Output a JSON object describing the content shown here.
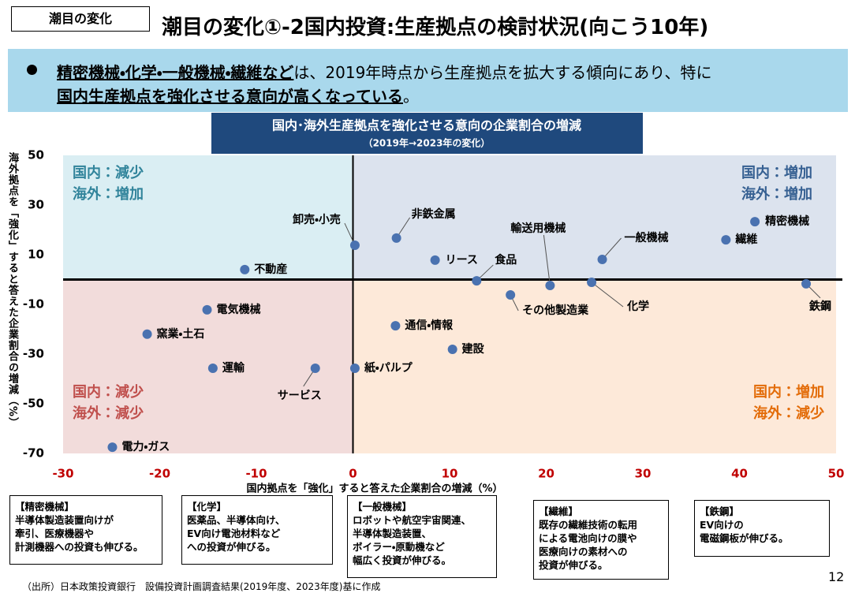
{
  "header": {
    "tag": "潮目の変化",
    "title": "潮目の変化①-2国内投資:生産拠点の検討状況(向こう10年)"
  },
  "summary": {
    "line1": [
      "精密機械・化学・一般機械・繊維など",
      "は、2019年時点から生産拠点を拡大する傾向にあり、特に"
    ],
    "line2": [
      "国内生産拠点を強化させる意向が高くなっている",
      "。"
    ]
  },
  "chart_data": {
    "type": "scatter",
    "title": "国内･海外生産拠点を強化させる意向の企業割合の増減",
    "subtitle": "（2019年→2023年の変化）",
    "x_label": "国内拠点を「強化」すると答えた企業割合の増減（%）",
    "y_label": "海外拠点を「強化」すると答えた企業割合の増減（%）",
    "xlim": [
      -30,
      50
    ],
    "ylim": [
      -70,
      50
    ],
    "xticks": [
      -30,
      -20,
      -10,
      0,
      10,
      20,
      30,
      40,
      50
    ],
    "yticks": [
      -70,
      -50,
      -30,
      -10,
      10,
      30,
      50
    ],
    "quadrants": [
      [
        "国内：減少",
        "海外：増加"
      ],
      [
        "国内：増加",
        "海外：増加"
      ],
      [
        "国内：減少",
        "海外：減少"
      ],
      [
        "国内：増加",
        "海外：減少"
      ]
    ],
    "color": "#4a72b0",
    "labels": [
      "精密機械",
      "繊維",
      "一般機械",
      "鉄鋼",
      "化学",
      "輸送用機械",
      "その他製造業",
      "食品",
      "リース",
      "非鉄金属",
      "卸売・小売",
      "不動産",
      "電気機械",
      "通信・情報",
      "窯業・土石",
      "建設",
      "運輸",
      "サービス",
      "紙・パルプ",
      "電力・ガス"
    ],
    "x": [
      41.6,
      38.6,
      25.8,
      46.9,
      24.7,
      20.4,
      16.3,
      12.8,
      8.5,
      4.5,
      0.2,
      -11.2,
      -15.1,
      4.4,
      -21.3,
      10.3,
      -14.5,
      -3.9,
      0.2,
      -24.9
    ],
    "values": [
      23.3,
      16,
      8.1,
      -1.7,
      -1.1,
      -2.4,
      -6.2,
      -0.5,
      7.8,
      16.7,
      13.8,
      4,
      -12.2,
      -18.6,
      -22,
      -28.1,
      -35.7,
      -35.7,
      -35.7,
      -67.5
    ]
  },
  "notes": [
    [
      "【精密機械】",
      "半導体製造装置向けが",
      "牽引、医療機器や",
      "計測機器への投資も伸びる。"
    ],
    [
      "【化学】",
      "医薬品、半導体向け、",
      "EV向け電池材料など",
      "への投資が伸びる。"
    ],
    [
      "【一般機械】",
      "ロボットや航空宇宙関連、",
      "半導体製造装置、",
      "ボイラー・原動機など",
      "幅広く投資が伸びる。"
    ],
    [
      "【繊維】",
      "既存の繊維技術の転用",
      "による電池向けの膜や",
      "医療向けの素材への",
      "投資が伸びる。"
    ],
    [
      "【鉄鋼】",
      "EV向けの",
      "電磁鋼板が伸びる。"
    ]
  ],
  "source": "（出所）日本政策投資銀行　設備投資計画調査結果(2019年度、2023年度)基に作成",
  "page": "12"
}
